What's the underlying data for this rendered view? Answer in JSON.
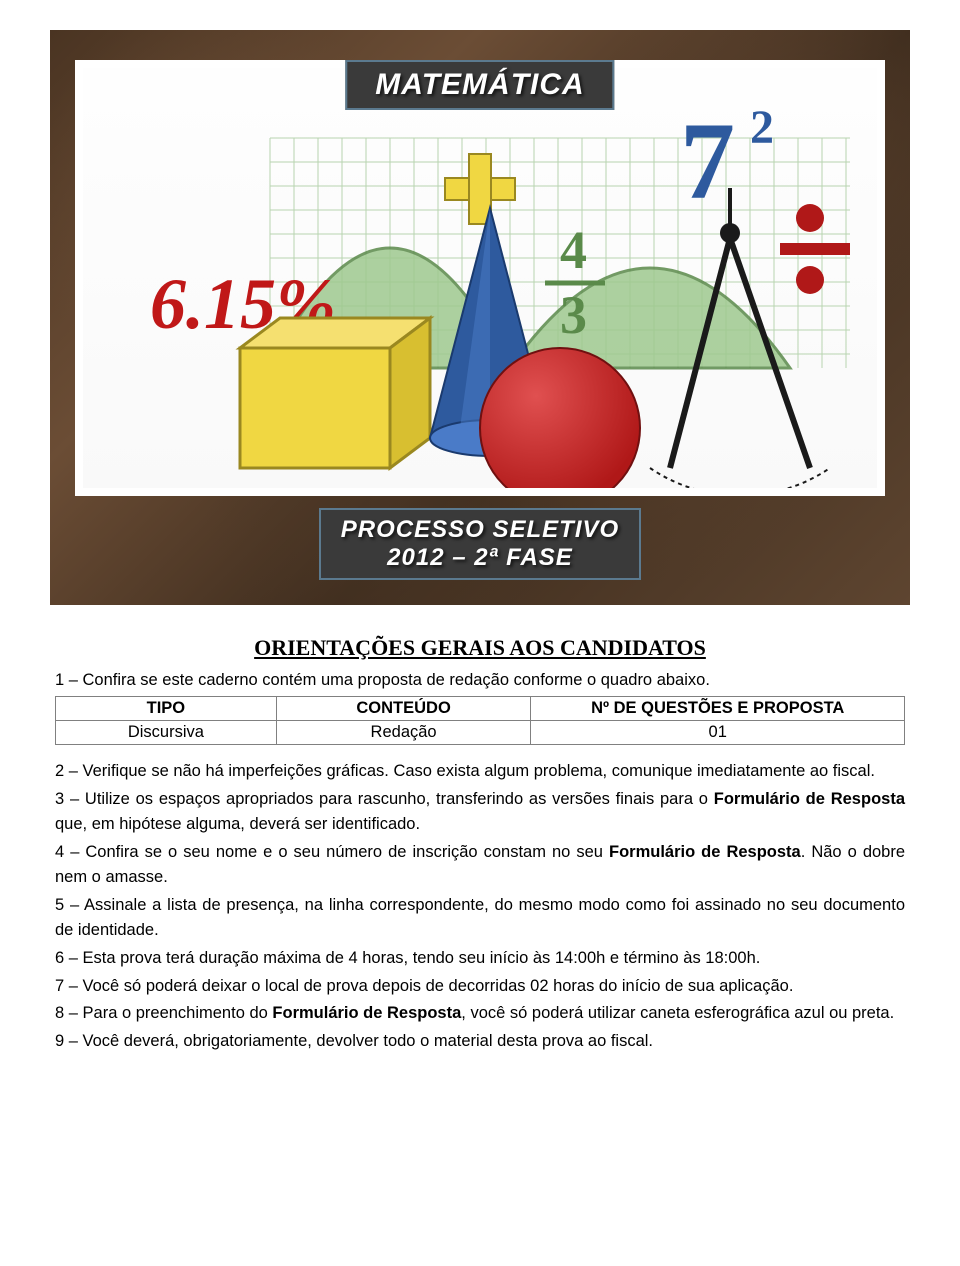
{
  "header": {
    "title": "MATEMÁTICA",
    "subtitle_line1": "PROCESSO SELETIVO",
    "subtitle_line2": "2012 – 2ª FASE"
  },
  "illustration": {
    "background": "#ffffff",
    "grid_color": "#b8d4b0",
    "curve_fill": "#9fc98f",
    "curve_stroke": "#5a8a4a",
    "cube_fill": "#f0d742",
    "cube_stroke": "#9a8820",
    "cone_fill": "#2e5a9e",
    "cone_highlight": "#4a7bc8",
    "sphere_fill": "#b01818",
    "sphere_highlight": "#e05050",
    "percent_text": "6.15%",
    "percent_color": "#c01818",
    "seven_text": "7",
    "seven_exp": "2",
    "seven_color": "#2e5a9e",
    "fraction_top": "4",
    "fraction_bottom": "3",
    "fraction_color": "#5a8a4a",
    "plus_color": "#f0d742",
    "divide_dot": "#b01818",
    "compass_color": "#1a1a1a"
  },
  "section_heading": "ORIENTAÇÕES GERAIS AOS CANDIDATOS",
  "intro": "1 – Confira se este caderno contém uma proposta de redação conforme o quadro abaixo.",
  "table": {
    "columns": [
      "TIPO",
      "CONTEÚDO",
      "Nº DE QUESTÕES E PROPOSTA"
    ],
    "rows": [
      [
        "Discursiva",
        "Redação",
        "01"
      ]
    ],
    "col_widths": [
      "26%",
      "30%",
      "44%"
    ]
  },
  "instructions": {
    "i2a": "2 – Verifique se não há imperfeições gráficas. Caso exista algum problema, comunique imediatamente ao fiscal.",
    "i3a": "3 – Utilize os espaços apropriados para rascunho, transferindo as versões finais para o ",
    "i3b": "Formulário de Resposta",
    "i3c": " que, em hipótese alguma, deverá ser identificado.",
    "i4a": "4 – Confira se o seu nome e o seu número de inscrição constam no seu ",
    "i4b": "Formulário de Resposta",
    "i4c": ". Não o dobre nem o amasse.",
    "i5": "5 – Assinale a lista de presença, na linha correspondente, do mesmo modo como foi assinado no seu documento de identidade.",
    "i6": "6 – Esta prova terá duração máxima de 4 horas, tendo seu início às 14:00h e término às 18:00h.",
    "i7": "7 – Você só poderá deixar o local de prova depois de decorridas 02 horas do início de sua aplicação.",
    "i8a": "8 – Para o preenchimento do ",
    "i8b": "Formulário de Resposta",
    "i8c": ", você só poderá utilizar caneta esferográfica azul ou preta.",
    "i9": "9 – Você deverá, obrigatoriamente, devolver todo o material desta prova ao fiscal."
  }
}
